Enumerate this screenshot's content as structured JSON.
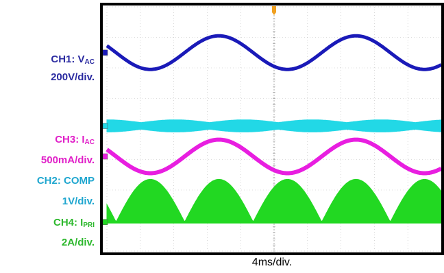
{
  "labels": {
    "ch1_name": "CH1: V",
    "ch1_sub": "AC",
    "ch1_scale": "200V/div.",
    "ch3_name": "CH3: I",
    "ch3_sub": "AC",
    "ch3_scale": "500mA/div.",
    "ch2_name": "CH2: COMP",
    "ch2_scale": "1V/div.",
    "ch4_name": "CH4: I",
    "ch4_sub": "PRI",
    "ch4_scale": "2A/div."
  },
  "colors": {
    "ch1": "#1a1ab8",
    "ch2": "#22d8e6",
    "ch3": "#e81ee0",
    "ch4": "#22d822",
    "ch1_label": "#2a2aa0",
    "ch2_label": "#1fa6cf",
    "ch3_label": "#e020c8",
    "ch4_label": "#2db82d",
    "trigger": "#f0a020",
    "screen": "#ffffff",
    "grid": "#bbbbbb",
    "frame": "#000000"
  },
  "chart_data": {
    "type": "line",
    "title": "",
    "xlabel": "4ms/div.",
    "x_unit": "div",
    "x_range": [
      0,
      10
    ],
    "y_range": [
      -4,
      4
    ],
    "grid": true,
    "series": [
      {
        "name": "CH1: VAC",
        "color_key": "ch1",
        "offset_div": 2.5,
        "shape": "sine",
        "amplitude_div": 0.55,
        "period_div": 4.1,
        "peak_at_div": 3.35
      },
      {
        "name": "CH2: COMP",
        "color_key": "ch2",
        "offset_div": 0.1,
        "shape": "ripple_band",
        "amplitude_div": 0.2,
        "period_div": 2.05
      },
      {
        "name": "CH3: IAC",
        "color_key": "ch3",
        "offset_div": -0.9,
        "shape": "sine",
        "amplitude_div": 0.55,
        "period_div": 4.1,
        "peak_at_div": 3.35
      },
      {
        "name": "CH4: IPRI",
        "color_key": "ch4",
        "offset_div": -3.05,
        "shape": "rectified_filled",
        "amplitude_div": 1.4,
        "period_div": 2.05,
        "peak_at_div": 3.35
      }
    ]
  }
}
